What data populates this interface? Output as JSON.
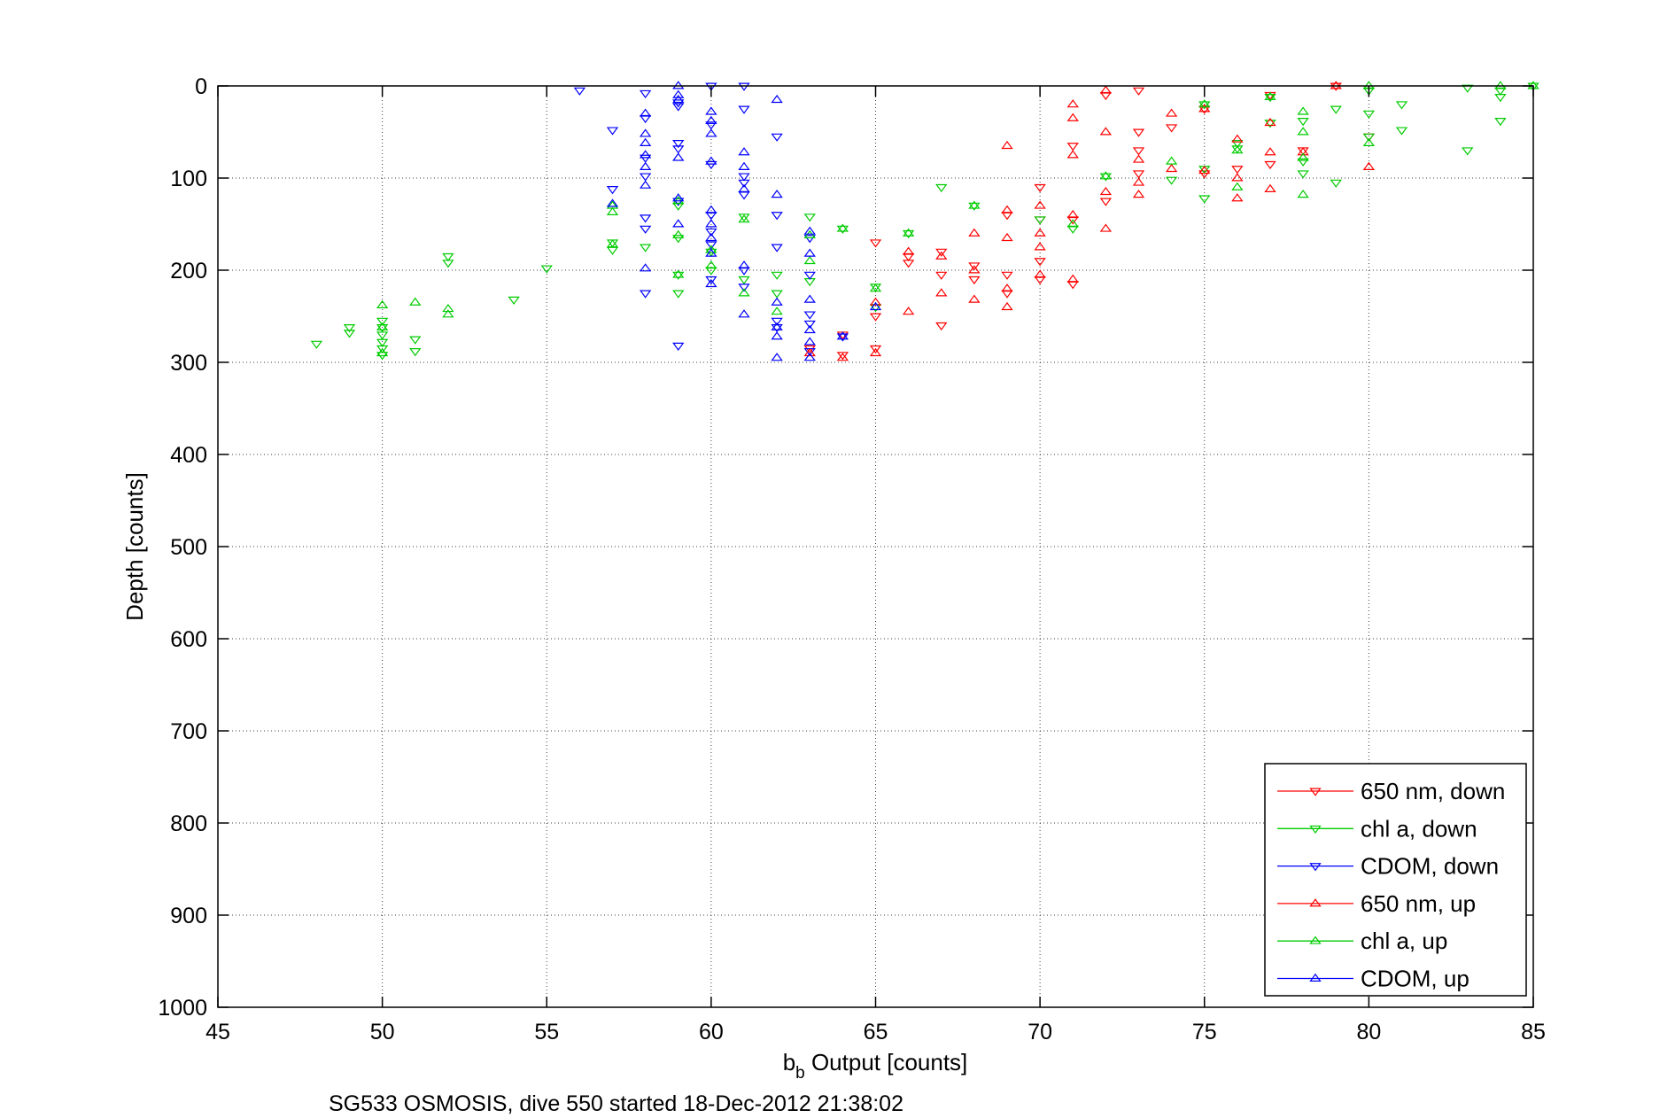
{
  "chart_data": {
    "type": "scatter",
    "xlabel_main": "b",
    "xlabel_sub": "b",
    "xlabel_rest": " Output [counts]",
    "ylabel": "Depth [counts]",
    "caption": "SG533 OSMOSIS, dive 550 started 18-Dec-2012 21:38:02",
    "xlim": [
      45,
      85
    ],
    "ylim": [
      0,
      1000
    ],
    "y_reversed": true,
    "grid": true,
    "legend_position": "bottom-right",
    "x_ticks": [
      45,
      50,
      55,
      60,
      65,
      70,
      75,
      80,
      85
    ],
    "y_ticks": [
      0,
      100,
      200,
      300,
      400,
      500,
      600,
      700,
      800,
      900,
      1000
    ],
    "series": [
      {
        "name": "650 nm, down",
        "color": "#ff0000",
        "marker": "triangle-down",
        "points": [
          [
            63,
            285
          ],
          [
            64,
            270
          ],
          [
            64,
            292
          ],
          [
            65,
            170
          ],
          [
            65,
            250
          ],
          [
            65,
            285
          ],
          [
            66,
            185
          ],
          [
            66,
            192
          ],
          [
            67,
            180
          ],
          [
            67,
            205
          ],
          [
            67,
            260
          ],
          [
            68,
            195
          ],
          [
            68,
            210
          ],
          [
            69,
            140
          ],
          [
            69,
            205
          ],
          [
            69,
            225
          ],
          [
            70,
            110
          ],
          [
            70,
            145
          ],
          [
            70,
            190
          ],
          [
            70,
            210
          ],
          [
            71,
            65
          ],
          [
            71,
            145
          ],
          [
            71,
            215
          ],
          [
            72,
            125
          ],
          [
            72,
            10
          ],
          [
            73,
            5
          ],
          [
            73,
            50
          ],
          [
            73,
            70
          ],
          [
            73,
            95
          ],
          [
            74,
            45
          ],
          [
            75,
            25
          ],
          [
            75,
            95
          ],
          [
            76,
            90
          ],
          [
            77,
            10
          ],
          [
            77,
            85
          ],
          [
            78,
            70
          ],
          [
            79,
            0
          ],
          [
            80,
            55
          ]
        ]
      },
      {
        "name": "chl a, down",
        "color": "#00cc00",
        "marker": "triangle-down",
        "points": [
          [
            48,
            280
          ],
          [
            49,
            262
          ],
          [
            49,
            268
          ],
          [
            50,
            255
          ],
          [
            50,
            262
          ],
          [
            50,
            270
          ],
          [
            50,
            278
          ],
          [
            50,
            285
          ],
          [
            50,
            292
          ],
          [
            51,
            275
          ],
          [
            51,
            288
          ],
          [
            52,
            185
          ],
          [
            52,
            192
          ],
          [
            54,
            232
          ],
          [
            55,
            198
          ],
          [
            57,
            170
          ],
          [
            57,
            178
          ],
          [
            58,
            175
          ],
          [
            59,
            130
          ],
          [
            59,
            165
          ],
          [
            59,
            205
          ],
          [
            59,
            225
          ],
          [
            60,
            180
          ],
          [
            60,
            200
          ],
          [
            61,
            142
          ],
          [
            61,
            210
          ],
          [
            62,
            205
          ],
          [
            62,
            225
          ],
          [
            63,
            142
          ],
          [
            63,
            212
          ],
          [
            64,
            155
          ],
          [
            65,
            218
          ],
          [
            65,
            240
          ],
          [
            66,
            160
          ],
          [
            67,
            110
          ],
          [
            68,
            130
          ],
          [
            70,
            145
          ],
          [
            71,
            155
          ],
          [
            72,
            98
          ],
          [
            74,
            102
          ],
          [
            75,
            20
          ],
          [
            75,
            90
          ],
          [
            75,
            122
          ],
          [
            76,
            62
          ],
          [
            76,
            68
          ],
          [
            77,
            12
          ],
          [
            77,
            40
          ],
          [
            78,
            38
          ],
          [
            78,
            82
          ],
          [
            78,
            95
          ],
          [
            79,
            25
          ],
          [
            79,
            105
          ],
          [
            80,
            5
          ],
          [
            80,
            30
          ],
          [
            80,
            55
          ],
          [
            81,
            20
          ],
          [
            81,
            48
          ],
          [
            83,
            2
          ],
          [
            83,
            70
          ],
          [
            84,
            5
          ],
          [
            84,
            12
          ],
          [
            84,
            38
          ],
          [
            85,
            0
          ]
        ]
      },
      {
        "name": "CDOM, down",
        "color": "#0000ff",
        "marker": "triangle-down",
        "points": [
          [
            56,
            5
          ],
          [
            57,
            48
          ],
          [
            57,
            112
          ],
          [
            58,
            8
          ],
          [
            58,
            35
          ],
          [
            58,
            78
          ],
          [
            58,
            98
          ],
          [
            58,
            143
          ],
          [
            58,
            155
          ],
          [
            58,
            225
          ],
          [
            59,
            18
          ],
          [
            59,
            22
          ],
          [
            59,
            62
          ],
          [
            59,
            68
          ],
          [
            59,
            125
          ],
          [
            59,
            282
          ],
          [
            60,
            0
          ],
          [
            60,
            42
          ],
          [
            60,
            85
          ],
          [
            60,
            140
          ],
          [
            60,
            158
          ],
          [
            60,
            172
          ],
          [
            60,
            210
          ],
          [
            61,
            0
          ],
          [
            61,
            25
          ],
          [
            61,
            98
          ],
          [
            61,
            105
          ],
          [
            61,
            118
          ],
          [
            61,
            200
          ],
          [
            61,
            218
          ],
          [
            62,
            55
          ],
          [
            62,
            140
          ],
          [
            62,
            175
          ],
          [
            62,
            255
          ],
          [
            62,
            262
          ],
          [
            63,
            165
          ],
          [
            63,
            205
          ],
          [
            63,
            248
          ],
          [
            63,
            258
          ],
          [
            63,
            288
          ],
          [
            64,
            272
          ]
        ]
      },
      {
        "name": "650 nm, up",
        "color": "#ff0000",
        "marker": "triangle-up",
        "points": [
          [
            63,
            290
          ],
          [
            64,
            295
          ],
          [
            65,
            235
          ],
          [
            65,
            290
          ],
          [
            66,
            180
          ],
          [
            66,
            245
          ],
          [
            67,
            185
          ],
          [
            67,
            225
          ],
          [
            68,
            160
          ],
          [
            68,
            200
          ],
          [
            68,
            232
          ],
          [
            69,
            65
          ],
          [
            69,
            135
          ],
          [
            69,
            165
          ],
          [
            69,
            220
          ],
          [
            69,
            240
          ],
          [
            70,
            130
          ],
          [
            70,
            160
          ],
          [
            70,
            175
          ],
          [
            70,
            205
          ],
          [
            71,
            20
          ],
          [
            71,
            35
          ],
          [
            71,
            75
          ],
          [
            71,
            140
          ],
          [
            71,
            210
          ],
          [
            72,
            5
          ],
          [
            72,
            50
          ],
          [
            72,
            115
          ],
          [
            72,
            155
          ],
          [
            73,
            80
          ],
          [
            73,
            105
          ],
          [
            73,
            118
          ],
          [
            74,
            30
          ],
          [
            74,
            90
          ],
          [
            75,
            25
          ],
          [
            75,
            92
          ],
          [
            76,
            58
          ],
          [
            76,
            100
          ],
          [
            76,
            122
          ],
          [
            77,
            40
          ],
          [
            77,
            72
          ],
          [
            77,
            112
          ],
          [
            78,
            72
          ],
          [
            79,
            0
          ],
          [
            80,
            88
          ]
        ]
      },
      {
        "name": "chl a, up",
        "color": "#00cc00",
        "marker": "triangle-up",
        "points": [
          [
            50,
            238
          ],
          [
            50,
            262
          ],
          [
            50,
            290
          ],
          [
            51,
            235
          ],
          [
            52,
            242
          ],
          [
            52,
            248
          ],
          [
            57,
            130
          ],
          [
            57,
            137
          ],
          [
            57,
            172
          ],
          [
            59,
            125
          ],
          [
            59,
            162
          ],
          [
            59,
            205
          ],
          [
            60,
            178
          ],
          [
            60,
            195
          ],
          [
            61,
            145
          ],
          [
            61,
            225
          ],
          [
            62,
            245
          ],
          [
            63,
            162
          ],
          [
            63,
            190
          ],
          [
            64,
            155
          ],
          [
            65,
            220
          ],
          [
            66,
            160
          ],
          [
            68,
            130
          ],
          [
            71,
            150
          ],
          [
            72,
            98
          ],
          [
            74,
            82
          ],
          [
            75,
            20
          ],
          [
            76,
            70
          ],
          [
            76,
            110
          ],
          [
            77,
            12
          ],
          [
            78,
            28
          ],
          [
            78,
            50
          ],
          [
            78,
            78
          ],
          [
            78,
            118
          ],
          [
            80,
            0
          ],
          [
            80,
            62
          ],
          [
            84,
            0
          ],
          [
            85,
            0
          ]
        ]
      },
      {
        "name": "CDOM, up",
        "color": "#0000ff",
        "marker": "triangle-up",
        "points": [
          [
            57,
            128
          ],
          [
            58,
            30
          ],
          [
            58,
            52
          ],
          [
            58,
            62
          ],
          [
            58,
            75
          ],
          [
            58,
            88
          ],
          [
            58,
            108
          ],
          [
            58,
            198
          ],
          [
            59,
            0
          ],
          [
            59,
            10
          ],
          [
            59,
            15
          ],
          [
            59,
            78
          ],
          [
            59,
            122
          ],
          [
            59,
            150
          ],
          [
            60,
            28
          ],
          [
            60,
            38
          ],
          [
            60,
            52
          ],
          [
            60,
            82
          ],
          [
            60,
            135
          ],
          [
            60,
            150
          ],
          [
            60,
            165
          ],
          [
            60,
            182
          ],
          [
            60,
            215
          ],
          [
            61,
            72
          ],
          [
            61,
            88
          ],
          [
            61,
            112
          ],
          [
            61,
            195
          ],
          [
            61,
            248
          ],
          [
            62,
            15
          ],
          [
            62,
            118
          ],
          [
            62,
            235
          ],
          [
            62,
            262
          ],
          [
            62,
            272
          ],
          [
            62,
            295
          ],
          [
            63,
            158
          ],
          [
            63,
            182
          ],
          [
            63,
            232
          ],
          [
            63,
            265
          ],
          [
            63,
            278
          ],
          [
            63,
            295
          ],
          [
            64,
            272
          ],
          [
            65,
            240
          ]
        ]
      }
    ]
  }
}
